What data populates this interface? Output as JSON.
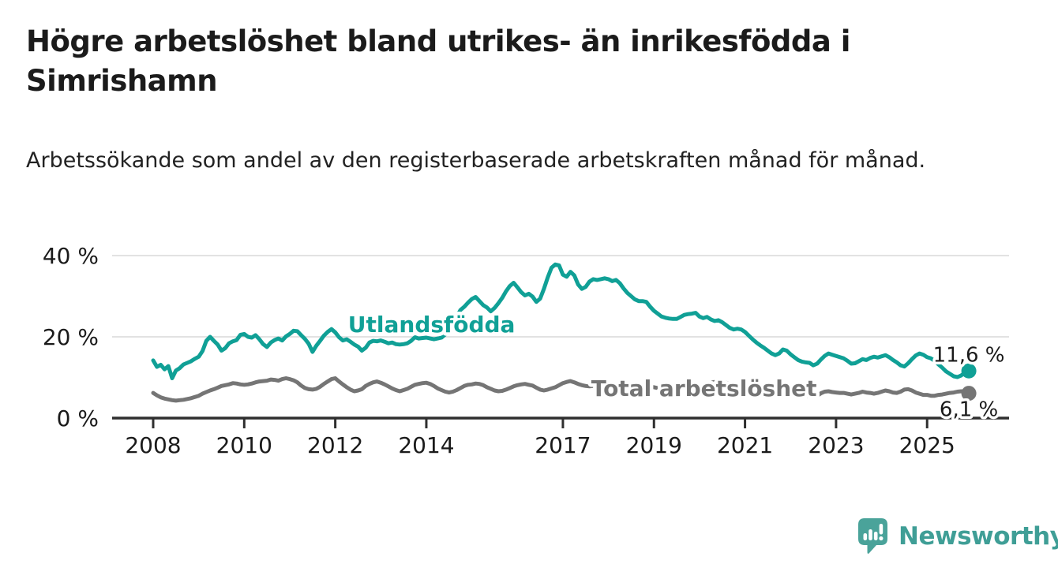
{
  "header": {
    "title": "Högre arbetslöshet bland utrikes- än inrikesfödda i Simrishamn",
    "subtitle": "Arbetssökande som andel av den registerbaserade arbetskraften månad för månad."
  },
  "branding": {
    "logo_text": "Newsworthy",
    "logo_text_color": "#3f9e96",
    "logo_bubble_color": "#4aa39a",
    "logo_icon": "newsworthy-speech-bubble-bar-chart-icon"
  },
  "chart_data": {
    "type": "line",
    "title": "Högre arbetslöshet bland utrikes- än inrikesfödda i Simrishamn",
    "subtitle": "Arbetssökande som andel av den registerbaserade arbetskraften månad för månad.",
    "xlabel": "",
    "ylabel": "",
    "grid": "horizontal",
    "legend_position": "inline-labels",
    "xlim": [
      2007.1,
      2026.8
    ],
    "ylim": [
      0,
      42
    ],
    "x_ticks": [
      2008,
      2010,
      2012,
      2014,
      2017,
      2019,
      2021,
      2023,
      2025
    ],
    "y_ticks": [
      {
        "value": 0,
        "label": "0 %"
      },
      {
        "value": 20,
        "label": "20 %"
      },
      {
        "value": 40,
        "label": "40 %"
      }
    ],
    "axis_color": "#2f2f2f",
    "grid_color": "#d8d8d8",
    "tick_label_color": "#1a1a1a",
    "value_label_color": "#1a1a1a",
    "x_start": 2008.0,
    "x_step_years": 0.0833333,
    "series": [
      {
        "name": "Utlandsfödda",
        "color": "#10a096",
        "end_value": 11.6,
        "end_label": "11,6 %",
        "end_label_position": "above",
        "label_anchor": {
          "year": 2012.28,
          "pct": 21.2
        },
        "values": [
          14.2,
          12.6,
          13.1,
          12.0,
          12.8,
          9.8,
          11.7,
          12.3,
          13.2,
          13.6,
          14.0,
          14.6,
          15.1,
          16.5,
          19.0,
          20.0,
          19.0,
          18.1,
          16.6,
          17.2,
          18.4,
          18.9,
          19.2,
          20.5,
          20.7,
          20.0,
          19.8,
          20.4,
          19.4,
          18.2,
          17.5,
          18.6,
          19.2,
          19.6,
          19.1,
          20.1,
          20.7,
          21.5,
          21.4,
          20.4,
          19.5,
          18.3,
          16.3,
          17.8,
          19.0,
          20.3,
          21.2,
          21.9,
          21.1,
          19.9,
          19.1,
          19.4,
          18.8,
          18.1,
          17.6,
          16.6,
          17.3,
          18.6,
          19.0,
          18.9,
          19.1,
          18.8,
          18.4,
          18.6,
          18.2,
          18.1,
          18.2,
          18.4,
          19.0,
          19.9,
          19.6,
          19.7,
          19.8,
          19.6,
          19.4,
          19.6,
          19.8,
          20.6,
          21.8,
          23.0,
          25.0,
          26.6,
          27.4,
          28.4,
          29.3,
          29.8,
          28.8,
          27.8,
          27.2,
          26.3,
          27.1,
          28.3,
          29.6,
          31.2,
          32.5,
          33.3,
          32.2,
          31.0,
          30.2,
          30.6,
          29.9,
          28.6,
          29.4,
          31.8,
          34.6,
          37.0,
          37.8,
          37.6,
          35.3,
          34.8,
          36.0,
          35.1,
          32.9,
          31.8,
          32.3,
          33.6,
          34.2,
          34.0,
          34.2,
          34.4,
          34.2,
          33.7,
          34.0,
          33.2,
          31.9,
          30.8,
          30.0,
          29.2,
          28.8,
          28.8,
          28.6,
          27.4,
          26.4,
          25.7,
          25.0,
          24.7,
          24.5,
          24.4,
          24.4,
          24.9,
          25.4,
          25.6,
          25.7,
          25.9,
          25.0,
          24.6,
          24.9,
          24.3,
          23.9,
          24.1,
          23.6,
          22.9,
          22.2,
          21.8,
          22.0,
          21.8,
          21.2,
          20.3,
          19.4,
          18.6,
          17.9,
          17.3,
          16.6,
          15.9,
          15.5,
          15.9,
          16.9,
          16.6,
          15.7,
          15.0,
          14.3,
          13.9,
          13.7,
          13.6,
          13.0,
          13.4,
          14.4,
          15.3,
          15.9,
          15.6,
          15.3,
          15.0,
          14.7,
          14.1,
          13.4,
          13.5,
          14.0,
          14.5,
          14.3,
          14.8,
          15.1,
          14.9,
          15.2,
          15.5,
          15.0,
          14.3,
          13.7,
          13.0,
          12.7,
          13.5,
          14.5,
          15.4,
          15.9,
          15.6,
          15.0,
          14.7,
          14.1,
          13.2,
          12.4,
          11.5,
          10.9,
          10.3,
          10.1,
          10.5,
          11.2,
          11.6
        ]
      },
      {
        "name": "Total arbetslöshet",
        "color": "#757575",
        "end_value": 6.1,
        "end_label": "6,1 %",
        "end_label_position": "below",
        "label_anchor": {
          "year": 2017.62,
          "pct": 5.4
        },
        "values": [
          6.2,
          5.6,
          5.1,
          4.8,
          4.6,
          4.4,
          4.3,
          4.4,
          4.5,
          4.7,
          4.9,
          5.2,
          5.5,
          6.0,
          6.4,
          6.8,
          7.1,
          7.5,
          7.9,
          8.1,
          8.3,
          8.6,
          8.5,
          8.3,
          8.2,
          8.3,
          8.5,
          8.8,
          9.0,
          9.1,
          9.2,
          9.5,
          9.4,
          9.2,
          9.6,
          9.8,
          9.6,
          9.3,
          8.8,
          8.0,
          7.4,
          7.1,
          7.0,
          7.2,
          7.7,
          8.4,
          9.0,
          9.6,
          9.8,
          9.0,
          8.3,
          7.6,
          7.0,
          6.6,
          6.8,
          7.1,
          7.9,
          8.4,
          8.8,
          9.0,
          8.7,
          8.3,
          7.8,
          7.3,
          6.9,
          6.6,
          6.9,
          7.2,
          7.7,
          8.2,
          8.4,
          8.6,
          8.7,
          8.4,
          7.9,
          7.3,
          6.9,
          6.5,
          6.3,
          6.5,
          6.9,
          7.4,
          7.9,
          8.2,
          8.3,
          8.5,
          8.4,
          8.1,
          7.6,
          7.2,
          6.8,
          6.6,
          6.7,
          7.0,
          7.4,
          7.8,
          8.1,
          8.3,
          8.4,
          8.2,
          8.0,
          7.5,
          7.0,
          6.8,
          7.0,
          7.3,
          7.6,
          8.1,
          8.6,
          8.9,
          9.1,
          8.8,
          8.4,
          8.1,
          7.9,
          7.8,
          7.9,
          8.1,
          8.3,
          8.4,
          8.3,
          8.1,
          7.8,
          7.5,
          7.2,
          7.0,
          6.9,
          7.0,
          7.2,
          7.4,
          7.6,
          7.7,
          7.6,
          7.4,
          7.2,
          7.0,
          6.9,
          6.8,
          6.9,
          7.0,
          7.2,
          7.4,
          7.5,
          7.6,
          7.7,
          7.9,
          8.3,
          8.7,
          8.9,
          9.0,
          8.9,
          8.7,
          8.5,
          8.3,
          8.1,
          8.0,
          7.9,
          7.7,
          7.4,
          7.1,
          6.9,
          6.7,
          6.5,
          6.3,
          6.2,
          6.1,
          6.1,
          6.0,
          5.9,
          5.7,
          5.6,
          5.7,
          5.5,
          5.3,
          5.2,
          5.5,
          6.1,
          6.5,
          6.6,
          6.4,
          6.3,
          6.2,
          6.2,
          6.0,
          5.8,
          6.0,
          6.2,
          6.5,
          6.3,
          6.2,
          6.0,
          6.2,
          6.5,
          6.8,
          6.6,
          6.3,
          6.2,
          6.5,
          7.0,
          7.1,
          6.8,
          6.3,
          6.0,
          5.7,
          5.7,
          5.5,
          5.5,
          5.7,
          5.8,
          6.0,
          6.2,
          6.3,
          6.5,
          6.6,
          6.5,
          6.1
        ]
      }
    ]
  }
}
